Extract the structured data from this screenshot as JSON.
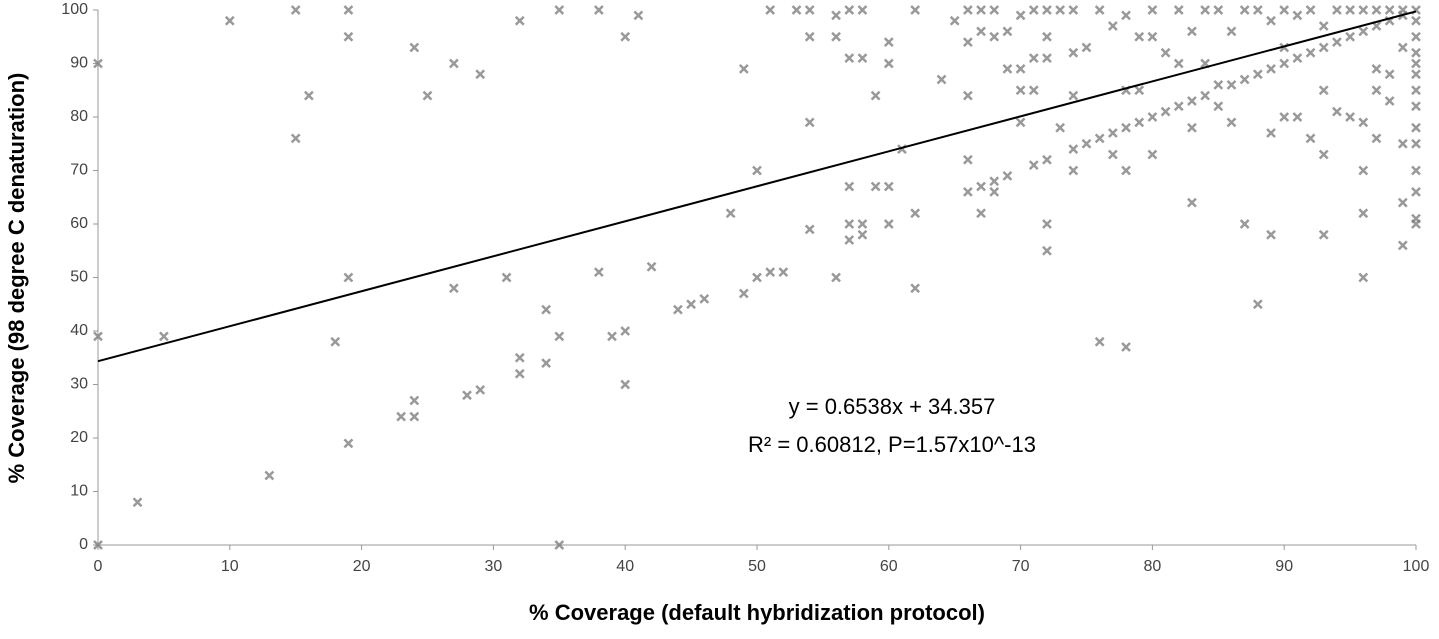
{
  "chart_data": {
    "type": "scatter",
    "xlabel": "% Coverage (default hybridization protocol)",
    "ylabel": "% Coverage (98 degree C denaturation)",
    "xlim": [
      0,
      100
    ],
    "ylim": [
      0,
      100
    ],
    "xticks": [
      0,
      10,
      20,
      30,
      40,
      50,
      60,
      70,
      80,
      90,
      100
    ],
    "yticks": [
      0,
      10,
      20,
      30,
      40,
      50,
      60,
      70,
      80,
      90,
      100
    ],
    "color": "#808080",
    "x": [
      0,
      0,
      0,
      3,
      5,
      10,
      13,
      15,
      15,
      16,
      18,
      19,
      19,
      19,
      19,
      23,
      24,
      24,
      24,
      25,
      27,
      27,
      28,
      29,
      29,
      31,
      32,
      32,
      32,
      34,
      34,
      35,
      35,
      35,
      38,
      38,
      39,
      40,
      40,
      40,
      41,
      42,
      44,
      45,
      46,
      48,
      49,
      49,
      50,
      50,
      51,
      51,
      52,
      53,
      54,
      54,
      54,
      54,
      56,
      56,
      56,
      57,
      57,
      57,
      57,
      57,
      58,
      58,
      58,
      58,
      59,
      59,
      60,
      60,
      60,
      60,
      61,
      62,
      62,
      62,
      64,
      65,
      66,
      66,
      66,
      66,
      66,
      67,
      67,
      67,
      67,
      68,
      68,
      68,
      68,
      69,
      69,
      69,
      70,
      70,
      70,
      70,
      71,
      71,
      71,
      71,
      72,
      72,
      72,
      72,
      72,
      72,
      73,
      73,
      74,
      74,
      74,
      74,
      74,
      75,
      75,
      76,
      76,
      76,
      77,
      77,
      77,
      78,
      78,
      78,
      78,
      78,
      79,
      79,
      79,
      80,
      80,
      80,
      80,
      81,
      81,
      82,
      82,
      82,
      83,
      83,
      83,
      83,
      84,
      84,
      84,
      85,
      85,
      85,
      86,
      86,
      86,
      87,
      87,
      87,
      88,
      88,
      88,
      89,
      89,
      89,
      89,
      90,
      90,
      90,
      90,
      91,
      91,
      91,
      92,
      92,
      92,
      93,
      93,
      93,
      93,
      93,
      94,
      94,
      94,
      95,
      95,
      95,
      96,
      96,
      96,
      96,
      96,
      96,
      97,
      97,
      97,
      97,
      97,
      98,
      98,
      98,
      98,
      99,
      99,
      99,
      99,
      99,
      99,
      100,
      100,
      100,
      100,
      100,
      100,
      100,
      100,
      100,
      100,
      100,
      100,
      100,
      100
    ],
    "y": [
      90,
      39,
      0,
      8,
      39,
      98,
      13,
      100,
      76,
      84,
      38,
      100,
      95,
      50,
      19,
      24,
      24,
      27,
      93,
      84,
      90,
      48,
      28,
      29,
      88,
      50,
      98,
      35,
      32,
      44,
      34,
      39,
      0,
      100,
      100,
      51,
      39,
      40,
      95,
      30,
      99,
      52,
      44,
      45,
      46,
      62,
      47,
      89,
      50,
      70,
      51,
      100,
      51,
      100,
      100,
      95,
      79,
      59,
      99,
      95,
      50,
      100,
      91,
      67,
      60,
      57,
      100,
      91,
      60,
      58,
      84,
      67,
      94,
      90,
      67,
      60,
      74,
      100,
      62,
      48,
      87,
      98,
      100,
      94,
      84,
      72,
      66,
      100,
      96,
      67,
      62,
      100,
      95,
      68,
      66,
      96,
      89,
      69,
      99,
      89,
      85,
      79,
      100,
      91,
      85,
      71,
      100,
      95,
      91,
      72,
      60,
      55,
      100,
      78,
      100,
      92,
      84,
      74,
      70,
      93,
      75,
      100,
      76,
      38,
      97,
      77,
      73,
      99,
      85,
      78,
      70,
      37,
      95,
      85,
      79,
      100,
      95,
      80,
      73,
      92,
      81,
      100,
      90,
      82,
      96,
      83,
      78,
      64,
      100,
      90,
      84,
      100,
      86,
      82,
      96,
      86,
      79,
      100,
      87,
      60,
      100,
      88,
      45,
      98,
      89,
      77,
      58,
      100,
      93,
      90,
      80,
      99,
      91,
      80,
      100,
      92,
      76,
      97,
      93,
      85,
      73,
      58,
      100,
      94,
      81,
      100,
      95,
      80,
      100,
      96,
      79,
      70,
      62,
      50,
      100,
      97,
      89,
      85,
      76,
      100,
      98,
      88,
      83,
      100,
      99,
      93,
      75,
      64,
      56,
      100,
      98,
      95,
      92,
      90,
      88,
      85,
      82,
      78,
      75,
      70,
      66,
      61,
      60
    ],
    "trendline": {
      "slope": 0.6538,
      "intercept": 34.357,
      "equation": "y = 0.6538x + 34.357",
      "stats": "R² = 0.60812, P=1.57x10^-13"
    }
  }
}
